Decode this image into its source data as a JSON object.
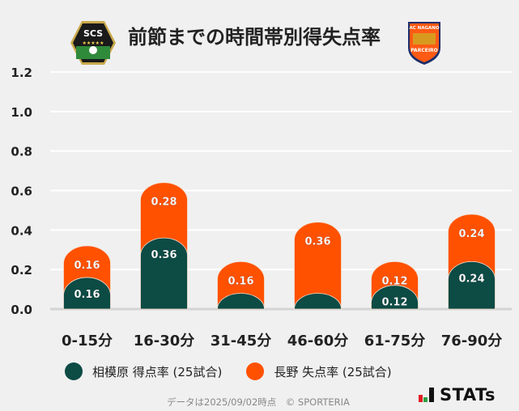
{
  "header": {
    "title": "前節までの時間帯別得失点率",
    "home_logo_text": "SCS",
    "away_logo_text": "AC NAGANO PARCEIRO"
  },
  "chart_data": {
    "type": "bar",
    "stacked": true,
    "categories": [
      "0-15分",
      "16-30分",
      "31-45分",
      "46-60分",
      "61-75分",
      "76-90分"
    ],
    "series": [
      {
        "name": "相模原 得点率 (25試合)",
        "values": [
          0.16,
          0.36,
          0,
          0,
          0.12,
          0.24
        ],
        "color": "#0d4b45"
      },
      {
        "name": "長野 失点率 (25試合)",
        "values": [
          0.16,
          0.28,
          0.16,
          0.36,
          0.12,
          0.24
        ],
        "color": "#ff5100"
      }
    ],
    "ylim": [
      0,
      1.2
    ],
    "yticks": [
      "0.0",
      "0.2",
      "0.4",
      "0.6",
      "0.8",
      "1.0",
      "1.2"
    ],
    "grid": true,
    "legend": "bottom"
  },
  "legend": {
    "home": "相模原 得点率 (25試合)",
    "away": "長野 失点率 (25試合)"
  },
  "footer": {
    "note": "データは2025/09/02時点　© SPORTERIA",
    "brand": "STATs"
  }
}
